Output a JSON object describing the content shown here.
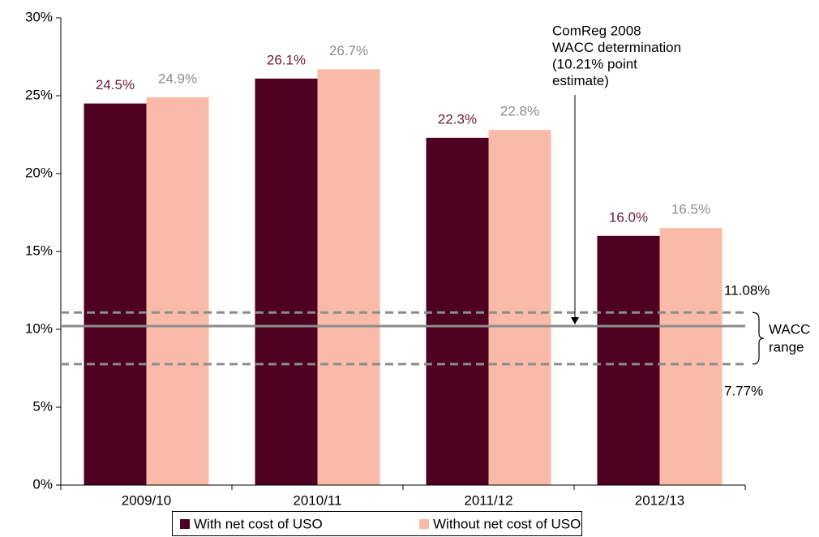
{
  "chart_data": {
    "type": "bar",
    "categories": [
      "2009/10",
      "2010/11",
      "2011/12",
      "2012/13"
    ],
    "series": [
      {
        "name": "With net cost of USO",
        "color": "#4d0020",
        "label_color": "#6b1a35",
        "values": [
          24.5,
          26.1,
          22.3,
          16.0
        ],
        "value_labels": [
          "24.5%",
          "26.1%",
          "22.3%",
          "16.0%"
        ]
      },
      {
        "name": "Without net cost of USO",
        "color": "#f9bba8",
        "label_color": "#8c8c8c",
        "values": [
          24.9,
          26.7,
          22.8,
          16.5
        ],
        "value_labels": [
          "24.9%",
          "26.7%",
          "22.8%",
          "16.5%"
        ]
      }
    ],
    "ylim": [
      0,
      30
    ],
    "yticks": [
      {
        "value": 0,
        "label": "0%"
      },
      {
        "value": 5,
        "label": "5%"
      },
      {
        "value": 10,
        "label": "10%"
      },
      {
        "value": 15,
        "label": "15%"
      },
      {
        "value": 20,
        "label": "20%"
      },
      {
        "value": 25,
        "label": "25%"
      },
      {
        "value": 30,
        "label": "30%"
      }
    ],
    "reference_lines": [
      {
        "value": 11.08,
        "label": "11.08%",
        "style": "dashed"
      },
      {
        "value": 10.21,
        "style": "solid"
      },
      {
        "value": 7.77,
        "label": "7.77%",
        "style": "dashed"
      }
    ],
    "annotation": [
      "ComReg 2008",
      "WACC determination",
      "(10.21% point",
      "estimate)"
    ],
    "range_label": [
      "WACC",
      "range"
    ],
    "legend": "bottom"
  }
}
